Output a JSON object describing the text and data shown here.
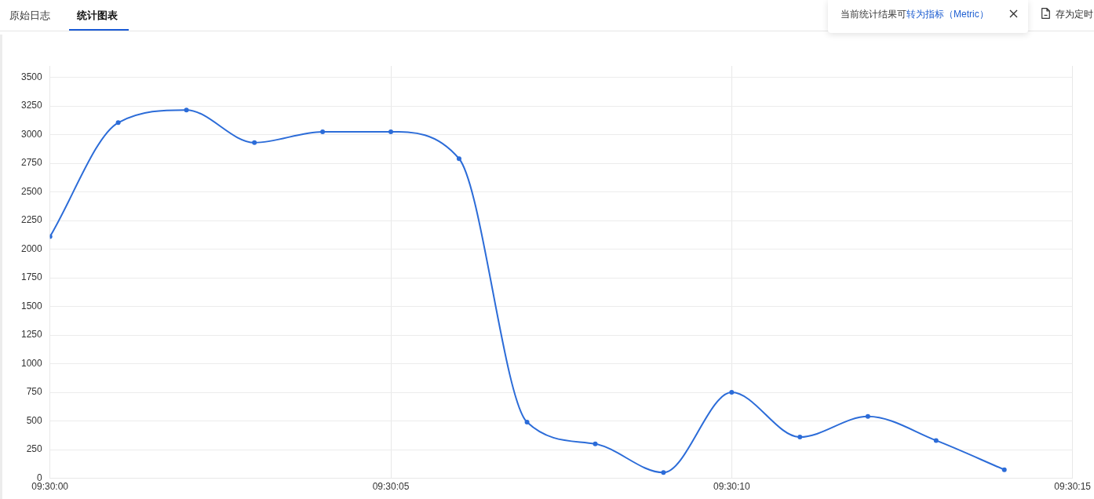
{
  "chart_data": {
    "type": "line",
    "x": [
      9.5,
      9.500278,
      9.500556,
      9.500833,
      9.501111,
      9.501389,
      9.501667,
      9.501944,
      9.502222,
      9.5025,
      9.502778,
      9.503056,
      9.503333,
      9.503611,
      9.503889
    ],
    "values": [
      2110,
      3105,
      3215,
      2930,
      3025,
      3025,
      2790,
      490,
      300,
      50,
      750,
      360,
      540,
      330,
      75
    ],
    "color": "#2c6cd8",
    "xlim": [
      9.5,
      9.504167
    ],
    "xticks": [
      {
        "value": 9.5,
        "label": "09:30:00"
      },
      {
        "value": 9.501389,
        "label": "09:30:05"
      },
      {
        "value": 9.502778,
        "label": "09:30:10"
      },
      {
        "value": 9.504167,
        "label": "09:30:15"
      }
    ],
    "ylim": [
      0,
      3600
    ],
    "yticks": [
      0,
      250,
      500,
      750,
      1000,
      1250,
      1500,
      1750,
      2000,
      2250,
      2500,
      2750,
      3000,
      3250,
      3500
    ],
    "grid": true,
    "marker": "circle",
    "line_style": "solid",
    "annotations": [
      "原始日志",
      "统计图表",
      "当前统计结果可",
      "转为指标（Metric）",
      "存为定时"
    ]
  }
}
